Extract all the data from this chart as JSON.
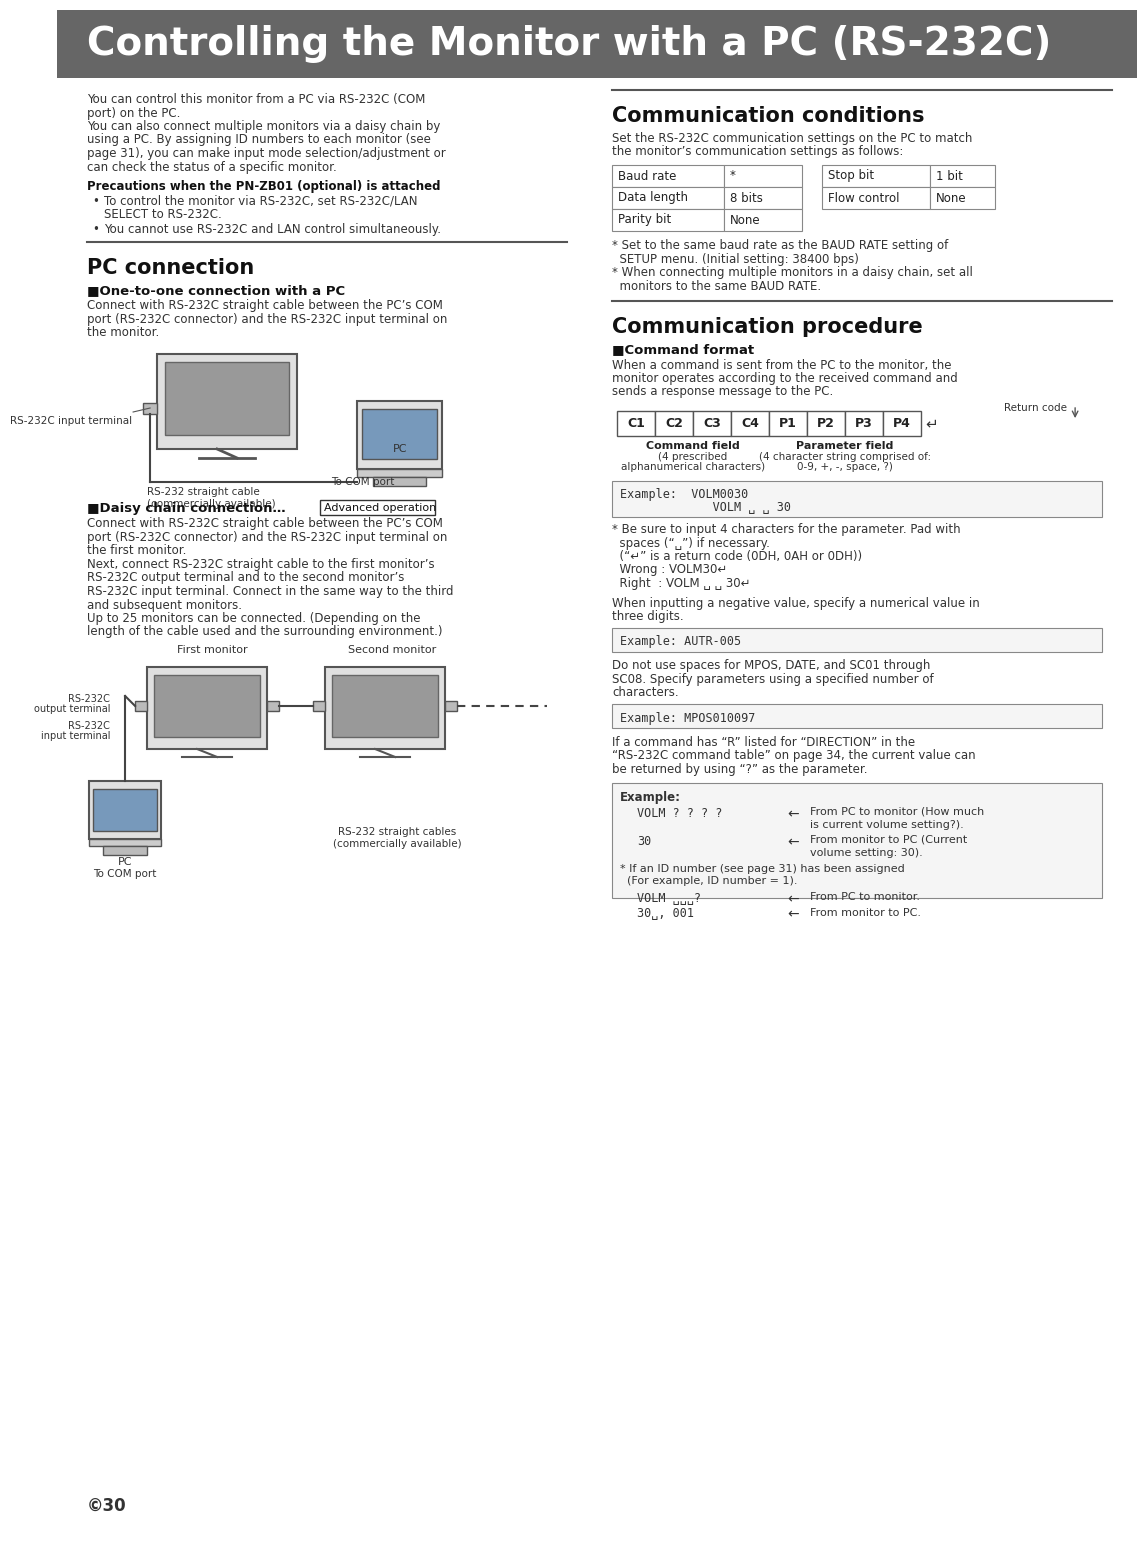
{
  "title": "Controlling the Monitor with a PC (RS-232C)",
  "title_bg": "#666666",
  "title_fg": "#ffffff",
  "page_bg": "#ffffff",
  "body_text_color": "#333333",
  "section_header_color": "#111111",
  "intro_lines": [
    "You can control this monitor from a PC via RS-232C (COM",
    "port) on the PC.",
    "You can also connect multiple monitors via a daisy chain by",
    "using a PC. By assigning ID numbers to each monitor (see",
    "page 31), you can make input mode selection/adjustment or",
    "can check the status of a specific monitor."
  ],
  "precaution_header": "Precautions when the PN-ZB01 (optional) is attached",
  "bullet1_lines": [
    "To control the monitor via RS-232C, set RS-232C/LAN",
    "SELECT to RS-232C."
  ],
  "bullet2": "You cannot use RS-232C and LAN control simultaneously.",
  "pc_connection_header": "PC connection",
  "one_to_one_header": "■One-to-one connection with a PC",
  "one_to_one_lines": [
    "Connect with RS-232C straight cable between the PC’s COM",
    "port (RS-232C connector) and the RS-232C input terminal on",
    "the monitor."
  ],
  "rs232c_label": "RS-232C input terminal",
  "to_com_label": "To COM port",
  "pc_label": "PC",
  "straight_cable_label": "RS-232 straight cable\n(commercially available)",
  "daisy_header": "■Daisy chain connection…",
  "daisy_advanced": "Advanced operation",
  "daisy_lines": [
    "Connect with RS-232C straight cable between the PC’s COM",
    "port (RS-232C connector) and the RS-232C input terminal on",
    "the first monitor.",
    "Next, connect RS-232C straight cable to the first monitor’s",
    "RS-232C output terminal and to the second monitor’s",
    "RS-232C input terminal. Connect in the same way to the third",
    "and subsequent monitors.",
    "Up to 25 monitors can be connected. (Depending on the",
    "length of the cable used and the surrounding environment.)"
  ],
  "first_monitor_label": "First monitor",
  "second_monitor_label": "Second monitor",
  "rs232c_output_label": "RS-232C\noutput terminal",
  "rs232c_input_label": "RS-232C\ninput terminal",
  "pc_label2": "PC",
  "to_com_label2": "To COM port",
  "straight_cables_label": "RS-232 straight cables\n(commercially available)",
  "comm_conditions_header": "Communication conditions",
  "comm_conditions_lines": [
    "Set the RS-232C communication settings on the PC to match",
    "the monitor’s communication settings as follows:"
  ],
  "comm_table_left": [
    [
      "Baud rate",
      "*"
    ],
    [
      "Data length",
      "8 bits"
    ],
    [
      "Parity bit",
      "None"
    ]
  ],
  "comm_table_right": [
    [
      "Stop bit",
      "1 bit"
    ],
    [
      "Flow control",
      "None"
    ]
  ],
  "comm_notes": [
    "* Set to the same baud rate as the BAUD RATE setting of",
    "  SETUP menu. (Initial setting: 38400 bps)",
    "* When connecting multiple monitors in a daisy chain, set all",
    "  monitors to the same BAUD RATE."
  ],
  "comm_procedure_header": "Communication procedure",
  "command_format_header": "■Command format",
  "command_format_lines": [
    "When a command is sent from the PC to the monitor, the",
    "monitor operates according to the received command and",
    "sends a response message to the PC."
  ],
  "return_code_label": "Return code",
  "command_fields": [
    "C1",
    "C2",
    "C3",
    "C4",
    "P1",
    "P2",
    "P3",
    "P4"
  ],
  "example1_lines": [
    "Example:  VOLM0030",
    "             VOLM ␣ ␣ 30"
  ],
  "example1_notes": [
    "* Be sure to input 4 characters for the parameter. Pad with",
    "  spaces (“␣”) if necessary.",
    "  (“↵” is a return code (0DH, 0AH or 0DH))",
    "  Wrong : VOLM30↵",
    "  Right  : VOLM ␣ ␣ 30↵"
  ],
  "neg_lines": [
    "When inputting a negative value, specify a numerical value in",
    "three digits."
  ],
  "example2_line": "Example: AUTR-005",
  "no_space_lines": [
    "Do not use spaces for MPOS, DATE, and SC01 through",
    "SC08. Specify parameters using a specified number of",
    "characters."
  ],
  "example3_line": "Example: MPOS010097",
  "r_direction_lines": [
    "If a command has “R” listed for “DIRECTION” in the",
    "“RS-232C command table” on page 34, the current value can",
    "be returned by using “?” as the parameter."
  ],
  "page_number": "©30"
}
